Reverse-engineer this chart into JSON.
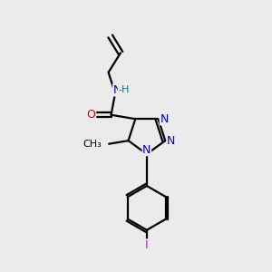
{
  "background_color": "#ebebeb",
  "atom_colors": {
    "C": "#000000",
    "N": "#0000cc",
    "O": "#cc0000",
    "H": "#008080",
    "I": "#ee00ee"
  },
  "bond_color": "#000000",
  "bond_width": 1.6,
  "figsize": [
    3.0,
    3.0
  ],
  "dpi": 100
}
